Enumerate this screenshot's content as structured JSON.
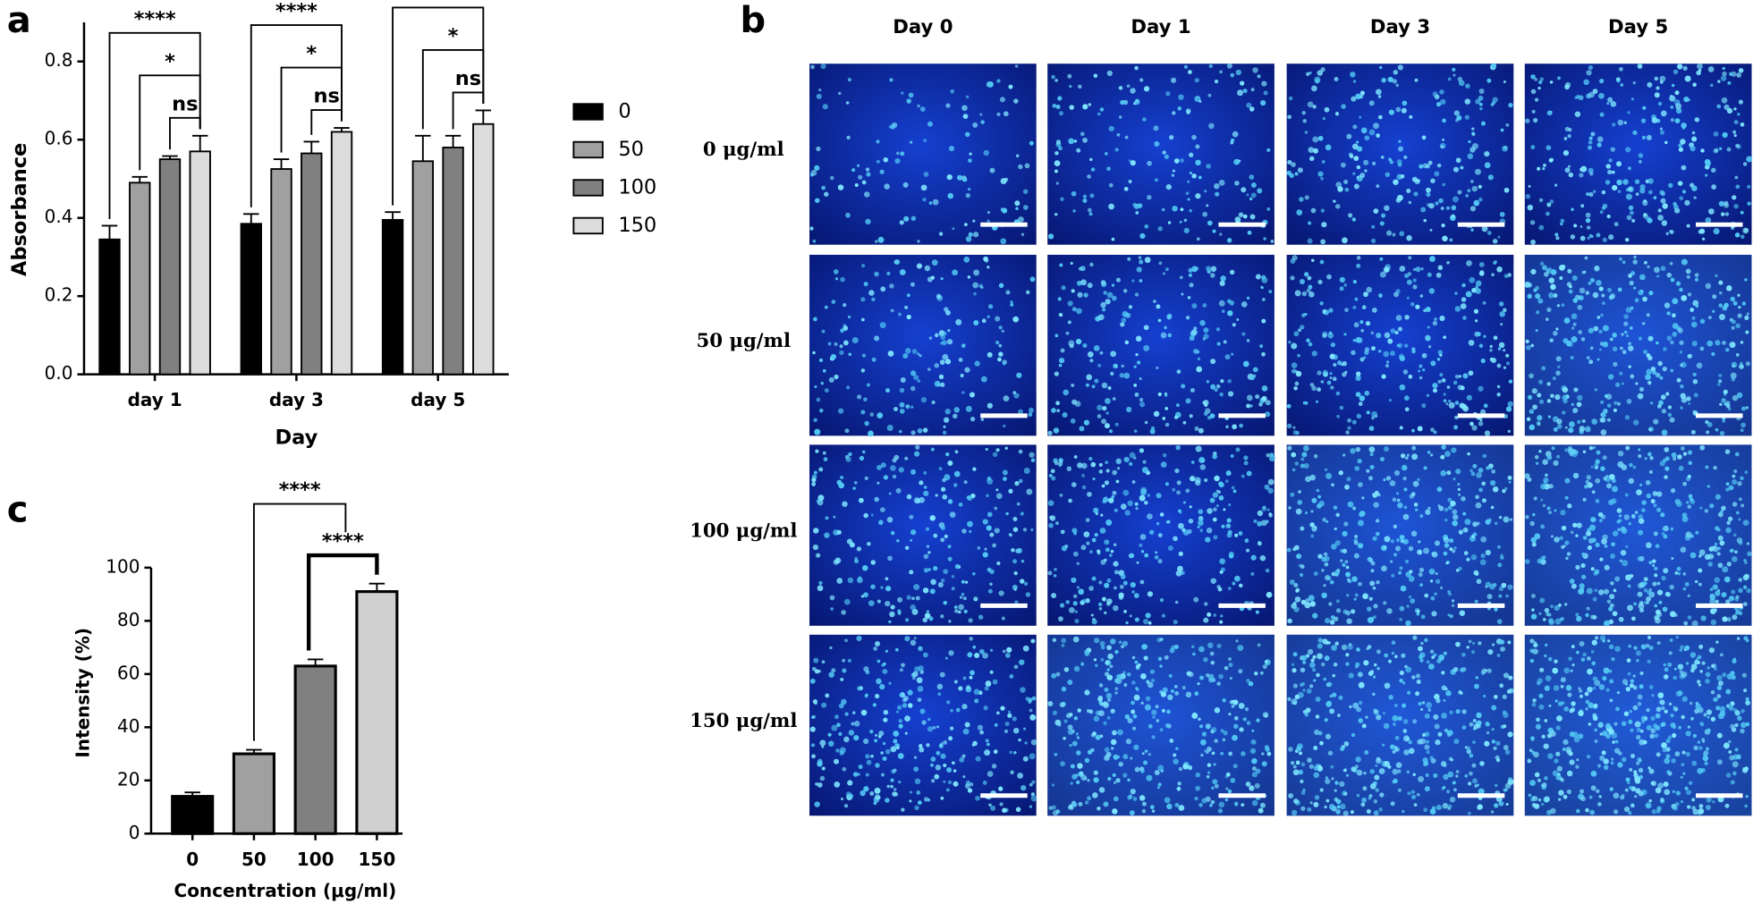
{
  "panels": [
    "a",
    "b",
    "c"
  ],
  "chart_data": [
    {
      "type": "bar",
      "xlabel": "Day",
      "ylabel": "Absorbance",
      "categories": [
        "day 1",
        "day 3",
        "day 5"
      ],
      "series": [
        {
          "name": "0",
          "color": "#000000",
          "values": [
            0.345,
            0.385,
            0.395
          ],
          "errors": [
            0.035,
            0.025,
            0.02
          ]
        },
        {
          "name": "50",
          "color": "#a0a0a0",
          "values": [
            0.49,
            0.525,
            0.545
          ],
          "errors": [
            0.015,
            0.025,
            0.065
          ]
        },
        {
          "name": "100",
          "color": "#808080",
          "values": [
            0.55,
            0.565,
            0.58
          ],
          "errors": [
            0.008,
            0.03,
            0.03
          ]
        },
        {
          "name": "150",
          "color": "#dcdcdc",
          "values": [
            0.57,
            0.62,
            0.64
          ],
          "errors": [
            0.04,
            0.01,
            0.035
          ]
        }
      ],
      "ylim": [
        0,
        0.9
      ],
      "yticks": [
        {
          "value": 0,
          "label": "0.0"
        },
        0.2,
        0.4,
        0.6,
        0.8
      ],
      "annotations": [
        "****",
        "*",
        "ns",
        "****",
        "*",
        "ns",
        "****",
        "*",
        "ns"
      ]
    },
    {
      "type": "bar",
      "xlabel": "Concentration (μg/ml)",
      "ylabel": "Intensity (%)",
      "categories": [
        "0",
        "50",
        "100",
        "150"
      ],
      "values": [
        14,
        30,
        63,
        91
      ],
      "errors": [
        1.5,
        1.5,
        2.5,
        3
      ],
      "colors": [
        "#000000",
        "#a0a0a0",
        "#808080",
        "#d0d0d0"
      ],
      "ylim": [
        0,
        100
      ],
      "yticks": [
        0,
        20,
        40,
        60,
        80,
        100
      ],
      "annotations": [
        "****",
        "****"
      ]
    }
  ],
  "micrographs": {
    "columns": [
      "Day 0",
      "Day 1",
      "Day 3",
      "Day 5"
    ],
    "rows": [
      "0 μg/ml",
      "50 μg/ml",
      "100 μg/ml",
      "150 μg/ml"
    ]
  }
}
